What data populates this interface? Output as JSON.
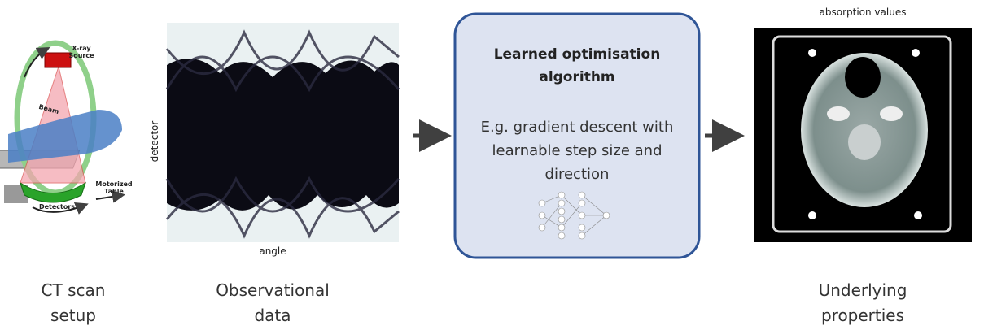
{
  "setup": {
    "source_label": "X-ray Source",
    "beam_label": "Beam",
    "table_label": "Motorized Table",
    "detectors_label": "Detectors",
    "caption": "CT scan setup"
  },
  "observation": {
    "y_label": "detector",
    "x_label": "angle",
    "caption": "Observational data"
  },
  "algorithm": {
    "title": "Learned optimisation algorithm",
    "description": "E.g. gradient descent with learnable step size and direction"
  },
  "output": {
    "top_label": "absorption values",
    "caption": "Underlying properties"
  }
}
